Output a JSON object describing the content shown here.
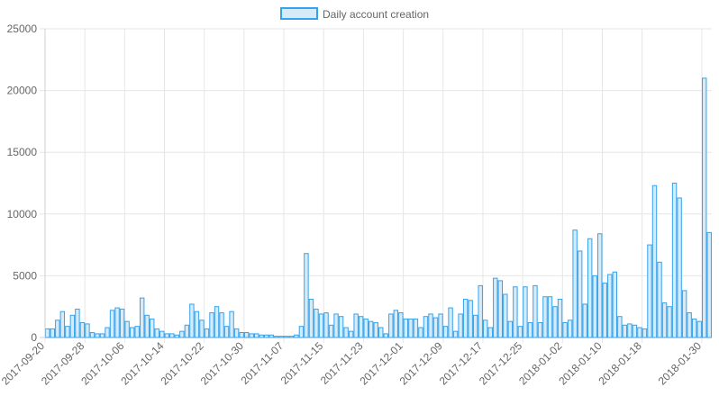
{
  "chart_data": {
    "type": "bar",
    "legend": {
      "position": "top",
      "label": "Daily account creation"
    },
    "colors": {
      "bar_fill": "#d6ebf8",
      "bar_border": "#36a2eb",
      "grid": "#e6e6e6",
      "axis": "#cfcfcf",
      "text": "#666666"
    },
    "grid": true,
    "ylim": [
      0,
      25000
    ],
    "y_ticks": [
      "0",
      "5000",
      "10000",
      "15000",
      "20000",
      "25000"
    ],
    "x_tick_labels": [
      "2017-09-20",
      "2017-09-28",
      "2017-10-06",
      "2017-10-14",
      "2017-10-22",
      "2017-10-30",
      "2017-11-07",
      "2017-11-15",
      "2017-11-23",
      "2017-12-01",
      "2017-12-09",
      "2017-12-17",
      "2017-12-25",
      "2018-01-02",
      "2018-01-10",
      "2018-01-18",
      "2018-01-30"
    ],
    "x_start": "2017-09-20",
    "x_end": "2018-01-31",
    "values": [
      700,
      700,
      1400,
      2100,
      900,
      1800,
      2300,
      1200,
      1100,
      400,
      300,
      300,
      800,
      2200,
      2400,
      2300,
      1300,
      800,
      900,
      3200,
      1800,
      1500,
      700,
      500,
      300,
      300,
      200,
      500,
      1000,
      2700,
      2100,
      1400,
      700,
      2000,
      2500,
      2000,
      900,
      2100,
      700,
      400,
      400,
      300,
      300,
      200,
      200,
      200,
      100,
      100,
      100,
      100,
      200,
      900,
      6800,
      3100,
      2300,
      1900,
      2000,
      1000,
      1900,
      1700,
      800,
      500,
      1900,
      1700,
      1500,
      1300,
      1200,
      800,
      300,
      1900,
      2200,
      2000,
      1500,
      1500,
      1500,
      800,
      1700,
      1900,
      1600,
      1900,
      900,
      2400,
      500,
      1900,
      3100,
      3000,
      1800,
      4200,
      1400,
      800,
      4800,
      4600,
      3500,
      1300,
      4100,
      900,
      4100,
      1200,
      4200,
      1200,
      3300,
      3300,
      2500,
      3100,
      1200,
      1400,
      8700,
      7000,
      2700,
      8000,
      5000,
      8400,
      4400,
      5100,
      5300,
      1700,
      1000,
      1100,
      1000,
      800,
      700,
      7500,
      12300,
      6100,
      2800,
      2500,
      12500,
      11300,
      3800,
      2000,
      1500,
      1300,
      21000,
      8500
    ]
  }
}
